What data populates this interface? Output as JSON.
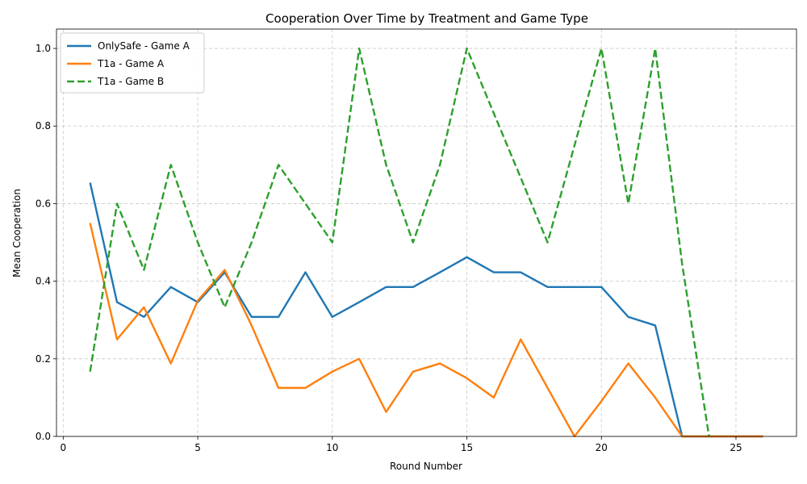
{
  "chart_data": {
    "type": "line",
    "title": "Cooperation Over Time by Treatment and Game Type",
    "xlabel": "Round Number",
    "ylabel": "Mean Cooperation",
    "xlim": [
      -0.25,
      27.25
    ],
    "ylim": [
      0,
      1.05
    ],
    "xticks": [
      0,
      5,
      10,
      15,
      20,
      25
    ],
    "yticks": [
      0.0,
      0.2,
      0.4,
      0.6,
      0.8,
      1.0
    ],
    "xtick_labels": [
      "0",
      "5",
      "10",
      "15",
      "20",
      "25"
    ],
    "ytick_labels": [
      "0.0",
      "0.2",
      "0.4",
      "0.6",
      "0.8",
      "1.0"
    ],
    "grid": true,
    "legend_position": "top-left",
    "series": [
      {
        "name": "OnlySafe - Game A",
        "color": "#1f77b4",
        "style": "solid",
        "x": [
          1,
          2,
          3,
          4,
          5,
          6,
          7,
          8,
          9,
          10,
          11,
          12,
          13,
          14,
          15,
          16,
          17,
          18,
          19,
          20,
          21,
          22,
          23,
          24,
          25,
          26
        ],
        "y": [
          0.654,
          0.346,
          0.308,
          0.385,
          0.346,
          0.423,
          0.308,
          0.308,
          0.423,
          0.308,
          0.346,
          0.385,
          0.385,
          0.423,
          0.462,
          0.423,
          0.423,
          0.385,
          0.385,
          0.385,
          0.308,
          0.286,
          0.0,
          0.0,
          0.0,
          0.0
        ]
      },
      {
        "name": "T1a - Game A",
        "color": "#ff7f0e",
        "style": "solid",
        "x": [
          1,
          2,
          3,
          4,
          5,
          6,
          7,
          8,
          9,
          10,
          11,
          12,
          13,
          14,
          15,
          16,
          17,
          18,
          19,
          20,
          21,
          22,
          23,
          24,
          25,
          26
        ],
        "y": [
          0.55,
          0.25,
          0.333,
          0.188,
          0.35,
          0.429,
          0.286,
          0.125,
          0.125,
          0.167,
          0.2,
          0.063,
          0.167,
          0.188,
          0.15,
          0.1,
          0.25,
          0.125,
          0.0,
          0.091,
          0.188,
          0.1,
          0.0,
          0.0,
          0.0,
          0.0
        ]
      },
      {
        "name": "T1a - Game B",
        "color": "#2ca02c",
        "style": "dashed",
        "x": [
          1,
          2,
          3,
          4,
          5,
          6,
          7,
          8,
          9,
          10,
          11,
          12,
          13,
          14,
          15,
          16,
          17,
          18,
          19,
          20,
          21,
          22,
          23,
          24
        ],
        "y": [
          0.167,
          0.6,
          0.429,
          0.7,
          0.5,
          0.333,
          0.5,
          0.7,
          0.6,
          0.5,
          1.0,
          0.7,
          0.5,
          0.7,
          1.0,
          0.833,
          0.667,
          0.5,
          0.75,
          1.0,
          0.6,
          1.0,
          0.444,
          0.0
        ]
      }
    ]
  }
}
